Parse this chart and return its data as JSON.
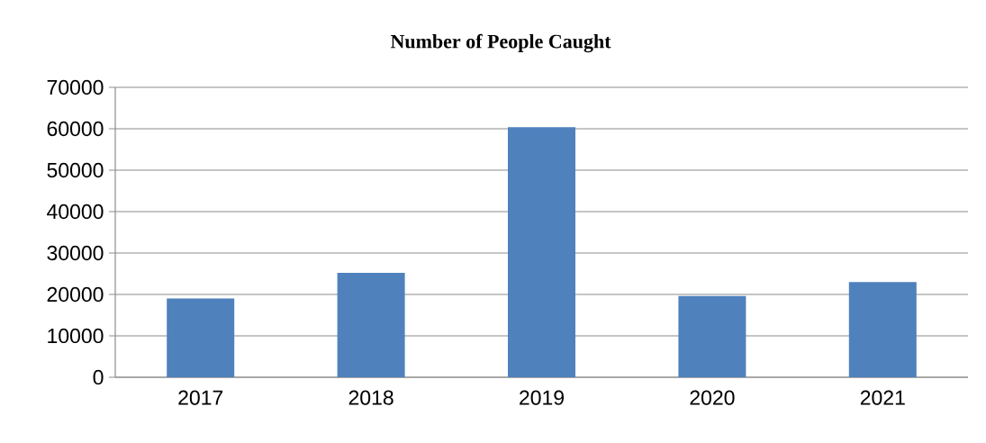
{
  "chart_data": {
    "type": "bar",
    "title": "Number of People Caught",
    "categories": [
      "2017",
      "2018",
      "2019",
      "2020",
      "2021"
    ],
    "values": [
      19000,
      25200,
      60400,
      19600,
      23000
    ],
    "color": "#4f81bd",
    "ylim": [
      0,
      70000
    ],
    "yticks": [
      0,
      10000,
      20000,
      30000,
      40000,
      50000,
      60000,
      70000
    ],
    "grid": "y"
  }
}
